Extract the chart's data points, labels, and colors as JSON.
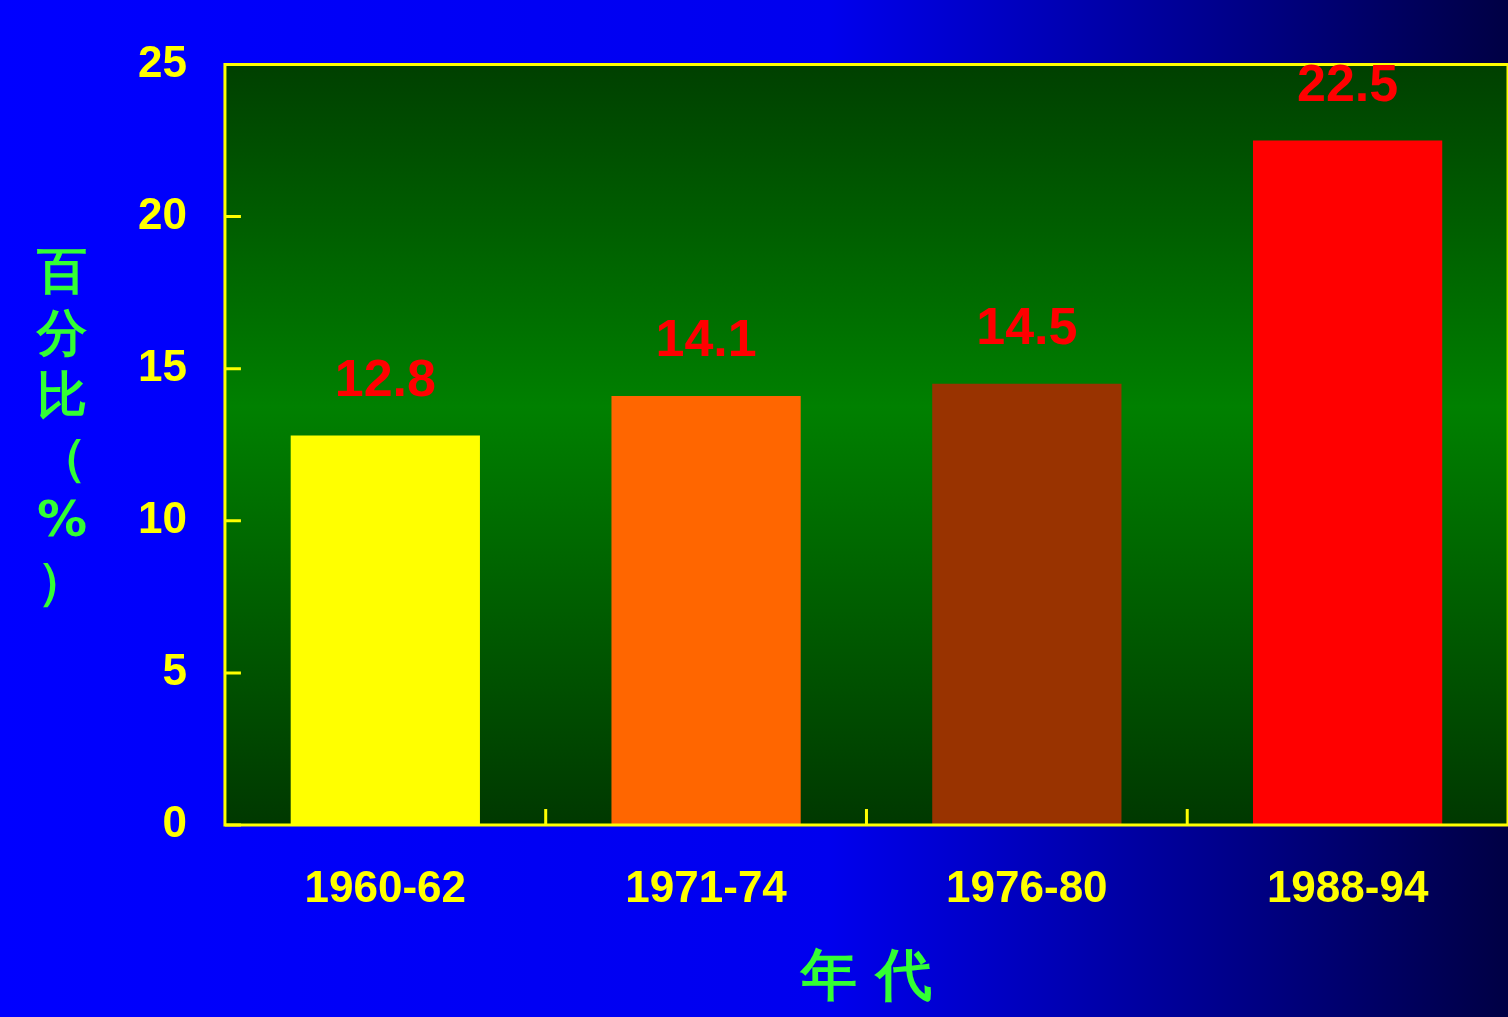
{
  "chart_data": {
    "type": "bar",
    "xlabel": "年 代",
    "ylabel": "百分比（%）",
    "categories": [
      "1960-62",
      "1971-74",
      "1976-80",
      "1988-94"
    ],
    "values": [
      12.8,
      14.1,
      14.5,
      22.5
    ],
    "colors": [
      "#ffff00",
      "#ff6600",
      "#993300",
      "#ff0000"
    ],
    "ylim": [
      0,
      25
    ],
    "yticks": [
      0,
      5,
      10,
      15,
      20,
      25
    ],
    "grid": false,
    "data_labels": true
  }
}
